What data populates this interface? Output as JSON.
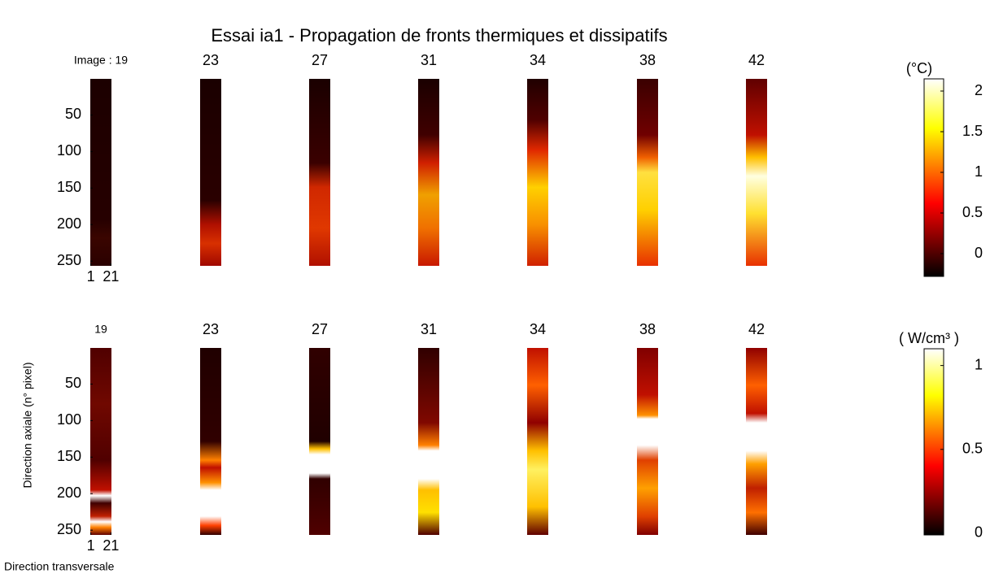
{
  "title": "Essai ia1 - Propagation de fronts thermiques et dissipatifs",
  "chart_data": [
    {
      "type": "heatmap",
      "frames": [
        {
          "value": 19,
          "label": "Image : 19"
        },
        23,
        27,
        31,
        34,
        38,
        42
      ],
      "ylim": [
        0.5,
        256.5
      ],
      "yticks": [
        50,
        100,
        150,
        200,
        250
      ],
      "xlim": [
        0.5,
        21.5
      ],
      "xticks": [
        1,
        21
      ],
      "colormap": "hot",
      "colorbar": {
        "label": "(°C)",
        "zlim": [
          -0.28,
          2.15
        ],
        "zticks": [
          0,
          0.5,
          1,
          1.5,
          2
        ]
      }
    },
    {
      "type": "heatmap",
      "frames": [
        19,
        23,
        27,
        31,
        34,
        38,
        42
      ],
      "ylim": [
        0.5,
        256.5
      ],
      "yticks": [
        50,
        100,
        150,
        200,
        250
      ],
      "xlim": [
        0.5,
        21.5
      ],
      "xticks": [
        1,
        21
      ],
      "ylabel": "Direction axiale (n° pixel)",
      "xlabel": "Direction transversale",
      "colormap": "hot",
      "colorbar": {
        "label": "( W/cm³ )",
        "zlim": [
          -0.01,
          1.1
        ],
        "zticks": [
          0,
          0.5,
          1
        ]
      }
    }
  ]
}
